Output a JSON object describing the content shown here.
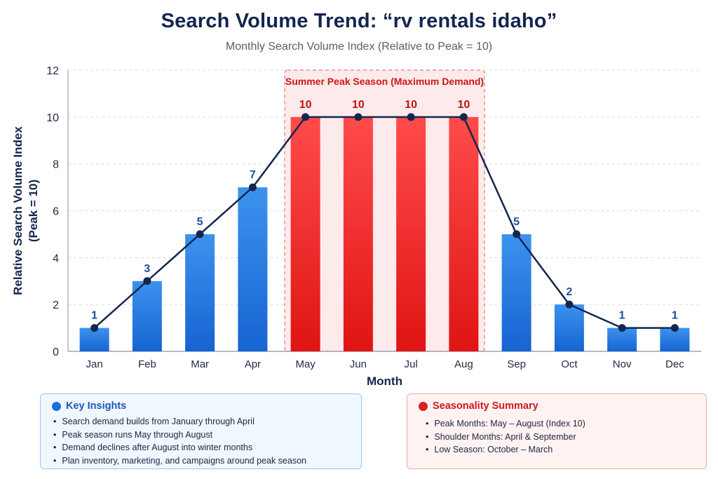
{
  "header": {
    "title": "Search Volume Trend: “rv rentals idaho”",
    "subtitle": "Monthly Search Volume Index (Relative to Peak = 10)"
  },
  "chart_data": {
    "type": "bar",
    "title": "Search Volume Trend: “rv rentals idaho”",
    "subtitle": "Monthly Search Volume Index (Relative to Peak = 10)",
    "xlabel": "Month",
    "ylabel_lines": [
      "Relative Search Volume Index",
      "(Peak = 10)"
    ],
    "categories": [
      "Jan",
      "Feb",
      "Mar",
      "Apr",
      "May",
      "Jun",
      "Jul",
      "Aug",
      "Sep",
      "Oct",
      "Nov",
      "Dec"
    ],
    "values": [
      1,
      3,
      5,
      7,
      10,
      10,
      10,
      10,
      5,
      2,
      1,
      1
    ],
    "ylim": [
      0,
      12
    ],
    "yticks": [
      0,
      2,
      4,
      6,
      8,
      10,
      12
    ],
    "grid": true,
    "overlay_line": true,
    "highlight": {
      "label": "Summer Peak Season (Maximum Demand)",
      "from": "May",
      "to": "Aug"
    },
    "colors": {
      "normal_bar": "#2a7ee0",
      "peak_bar": "#f23b3b",
      "line": "#13264f",
      "normal_label": "#1b4f9c",
      "peak_label": "#c01515"
    }
  },
  "insights": {
    "heading": "Key Insights",
    "items": [
      "Search demand builds from January through April",
      "Peak season runs May through August",
      "Demand declines after August into winter months",
      "Plan inventory, marketing, and campaigns around peak season"
    ]
  },
  "seasonality": {
    "heading": "Seasonality Summary",
    "items": [
      "Peak Months: May – August (Index 10)",
      "Shoulder Months: April & September",
      "Low Season: October – March"
    ]
  }
}
